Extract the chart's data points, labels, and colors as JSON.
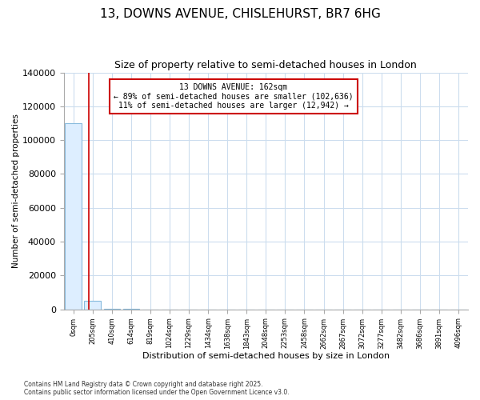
{
  "title": "13, DOWNS AVENUE, CHISLEHURST, BR7 6HG",
  "subtitle": "Size of property relative to semi-detached houses in London",
  "xlabel": "Distribution of semi-detached houses by size in London",
  "ylabel": "Number of semi-detached properties",
  "bar_categories": [
    "0sqm",
    "205sqm",
    "410sqm",
    "614sqm",
    "819sqm",
    "1024sqm",
    "1229sqm",
    "1434sqm",
    "1638sqm",
    "1843sqm",
    "2048sqm",
    "2253sqm",
    "2458sqm",
    "2662sqm",
    "2867sqm",
    "3072sqm",
    "3277sqm",
    "3482sqm",
    "3686sqm",
    "3891sqm",
    "4096sqm"
  ],
  "bar_values": [
    110000,
    5000,
    500,
    150,
    60,
    30,
    15,
    10,
    7,
    5,
    4,
    3,
    2,
    2,
    1,
    1,
    1,
    1,
    1,
    1,
    1
  ],
  "bar_color": "#ddeeff",
  "bar_edge_color": "#88bbdd",
  "property_line_x": 0.79,
  "annotation_title": "13 DOWNS AVENUE: 162sqm",
  "annotation_line1": "← 89% of semi-detached houses are smaller (102,636)",
  "annotation_line2": "11% of semi-detached houses are larger (12,942) →",
  "red_line_color": "#cc0000",
  "ylim": [
    0,
    140000
  ],
  "yticks": [
    0,
    20000,
    40000,
    60000,
    80000,
    100000,
    120000,
    140000
  ],
  "ytick_labels": [
    "0",
    "20000",
    "40000",
    "60000",
    "80000",
    "100000",
    "120000",
    "140000"
  ],
  "footer": "Contains HM Land Registry data © Crown copyright and database right 2025.\nContains public sector information licensed under the Open Government Licence v3.0.",
  "bg_color": "#ffffff",
  "plot_bg_color": "#ffffff",
  "grid_color": "#ccddee",
  "annotation_box_color": "#ffffff",
  "annotation_box_edge_color": "#cc0000",
  "title_fontsize": 11,
  "subtitle_fontsize": 9
}
